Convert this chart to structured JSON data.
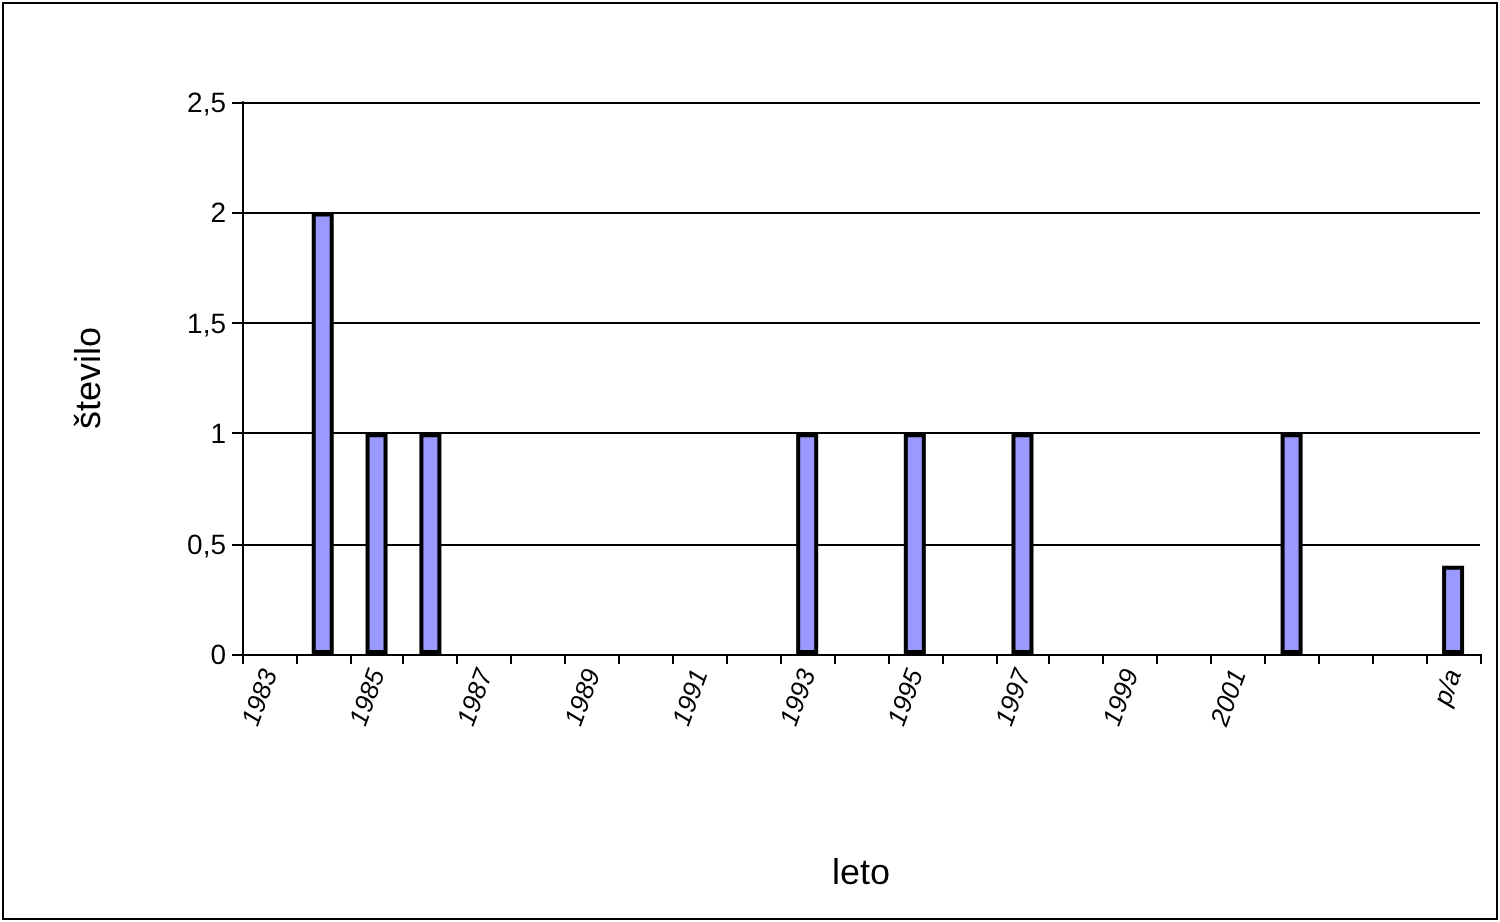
{
  "chart_data": {
    "type": "bar",
    "xlabel": "leto",
    "ylabel": "število",
    "categories": [
      "1983",
      null,
      "1985",
      null,
      "1987",
      null,
      "1989",
      null,
      "1991",
      null,
      "1993",
      null,
      "1995",
      null,
      "1997",
      null,
      "1999",
      null,
      "2001",
      null,
      null,
      null,
      "p/a"
    ],
    "values": [
      null,
      2,
      1,
      1,
      null,
      null,
      null,
      null,
      null,
      null,
      1,
      null,
      1,
      null,
      1,
      null,
      null,
      null,
      null,
      1,
      null,
      null,
      0.4
    ],
    "color": "#9999ff",
    "ylim": [
      0,
      2.5
    ],
    "yticks": [
      0,
      {
        "value": 0.5,
        "label": "0,5"
      },
      1,
      {
        "value": 1.5,
        "label": "1,5"
      },
      2,
      {
        "value": 2.5,
        "label": "2,5"
      }
    ],
    "grid": "y"
  }
}
